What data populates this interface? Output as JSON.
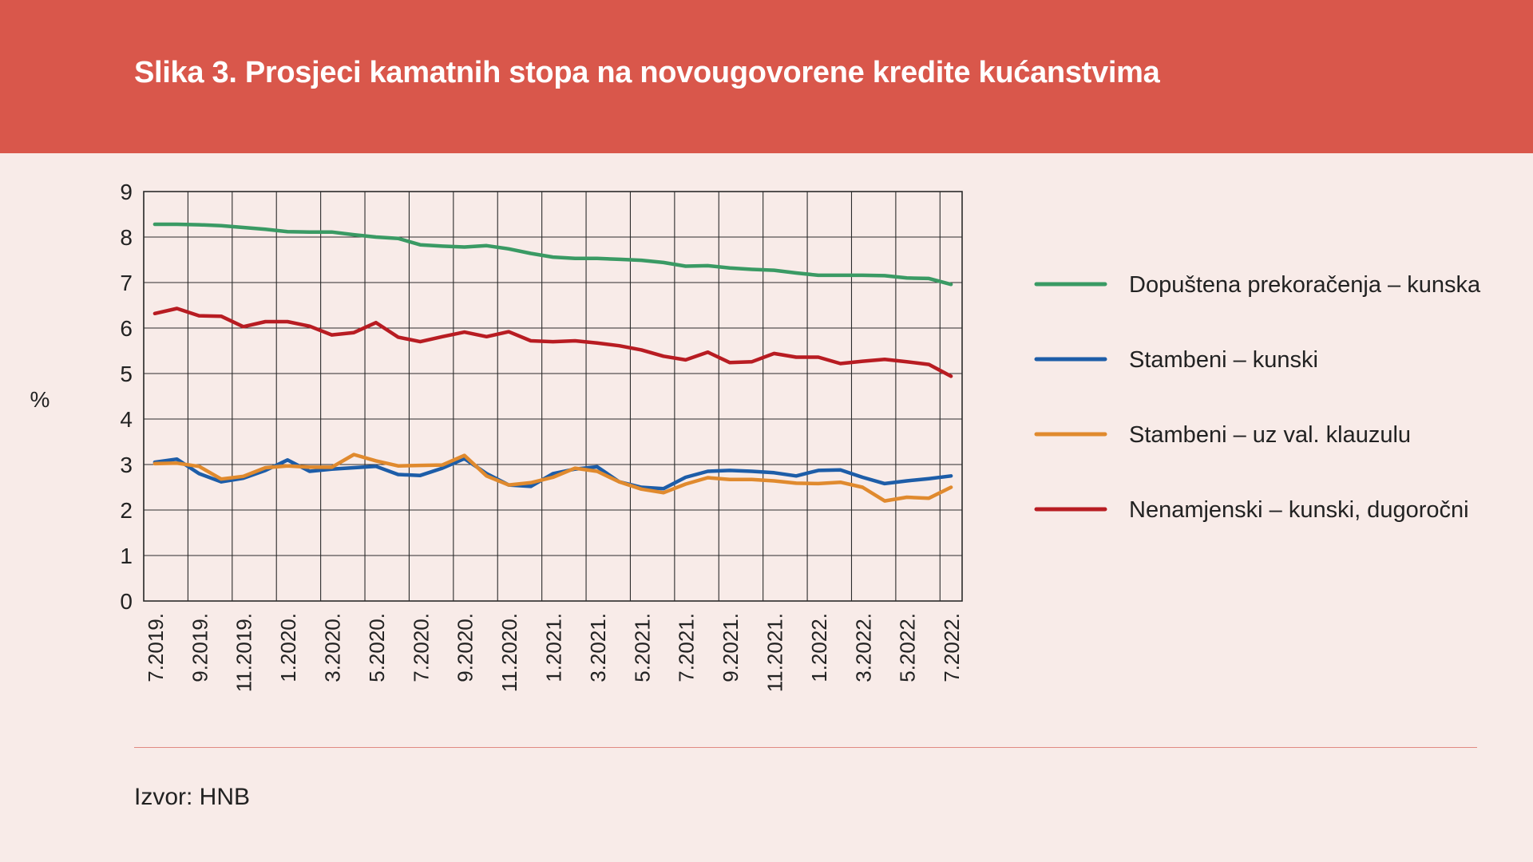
{
  "figure": {
    "title": "Slika 3. Prosjeci kamatnih stopa na novougovorene kredite kućanstvima",
    "source": "Izvor: HNB"
  },
  "colors": {
    "header_bg": "#d9574b",
    "page_bg": "#f8ebe8"
  },
  "chart_data": {
    "type": "line",
    "ylabel": "%",
    "xlabel": "",
    "ylim": [
      0,
      9
    ],
    "yticks": [
      "0",
      "1",
      "2",
      "3",
      "4",
      "5",
      "6",
      "7",
      "8",
      "9"
    ],
    "grid": true,
    "legend_position": "right",
    "x": [
      "7.2019.",
      "8.2019.",
      "9.2019.",
      "10.2019.",
      "11.2019.",
      "12.2019.",
      "1.2020.",
      "2.2020.",
      "3.2020.",
      "4.2020.",
      "5.2020.",
      "6.2020.",
      "7.2020.",
      "8.2020.",
      "9.2020.",
      "10.2020.",
      "11.2020.",
      "12.2020.",
      "1.2021.",
      "2.2021.",
      "3.2021.",
      "4.2021.",
      "5.2021.",
      "6.2021.",
      "7.2021.",
      "8.2021.",
      "9.2021.",
      "10.2021.",
      "11.2021.",
      "12.2021.",
      "1.2022.",
      "2.2022.",
      "3.2022.",
      "4.2022.",
      "5.2022.",
      "6.2022.",
      "7.2022."
    ],
    "xtick_labels": [
      "7.2019.",
      "9.2019.",
      "11.2019.",
      "1.2020.",
      "3.2020.",
      "5.2020.",
      "7.2020.",
      "9.2020.",
      "11.2020.",
      "1.2021.",
      "3.2021.",
      "5.2021.",
      "7.2021.",
      "9.2021.",
      "11.2021.",
      "1.2022.",
      "3.2022.",
      "5.2022.",
      "7.2022."
    ],
    "series": [
      {
        "name": "Dopuštena prekoračenja – kunska",
        "color": "#3a9a64",
        "values": [
          8.28,
          8.28,
          8.27,
          8.25,
          8.21,
          8.17,
          8.12,
          8.11,
          8.11,
          8.05,
          8.0,
          7.97,
          7.83,
          7.8,
          7.78,
          7.81,
          7.74,
          7.64,
          7.56,
          7.53,
          7.53,
          7.51,
          7.49,
          7.44,
          7.36,
          7.37,
          7.32,
          7.29,
          7.27,
          7.21,
          7.16,
          7.16,
          7.16,
          7.15,
          7.1,
          7.09,
          6.96
        ]
      },
      {
        "name": "Stambeni – kunski",
        "color": "#1d5da8",
        "values": [
          3.05,
          3.12,
          2.8,
          2.62,
          2.7,
          2.87,
          3.1,
          2.85,
          2.9,
          2.93,
          2.96,
          2.78,
          2.76,
          2.92,
          3.13,
          2.8,
          2.55,
          2.52,
          2.8,
          2.9,
          2.95,
          2.62,
          2.5,
          2.47,
          2.72,
          2.85,
          2.87,
          2.85,
          2.82,
          2.75,
          2.87,
          2.88,
          2.72,
          2.58,
          2.64,
          2.69,
          2.75
        ]
      },
      {
        "name": "Stambeni – uz val. klauzulu",
        "color": "#e08a2e",
        "values": [
          3.02,
          3.03,
          2.96,
          2.68,
          2.74,
          2.93,
          2.97,
          2.94,
          2.94,
          3.22,
          3.08,
          2.97,
          2.98,
          2.99,
          3.2,
          2.75,
          2.55,
          2.6,
          2.72,
          2.92,
          2.85,
          2.62,
          2.46,
          2.38,
          2.57,
          2.71,
          2.67,
          2.67,
          2.64,
          2.59,
          2.58,
          2.61,
          2.5,
          2.2,
          2.28,
          2.26,
          2.5
        ]
      },
      {
        "name": "Nenamjenski – kunski, dugoročni",
        "color": "#b81c22",
        "values": [
          6.32,
          6.43,
          6.27,
          6.26,
          6.03,
          6.14,
          6.14,
          6.04,
          5.85,
          5.9,
          6.12,
          5.8,
          5.7,
          5.81,
          5.91,
          5.81,
          5.92,
          5.72,
          5.7,
          5.72,
          5.67,
          5.61,
          5.52,
          5.38,
          5.3,
          5.47,
          5.24,
          5.26,
          5.44,
          5.36,
          5.36,
          5.22,
          5.27,
          5.31,
          5.26,
          5.2,
          4.94
        ]
      }
    ]
  }
}
